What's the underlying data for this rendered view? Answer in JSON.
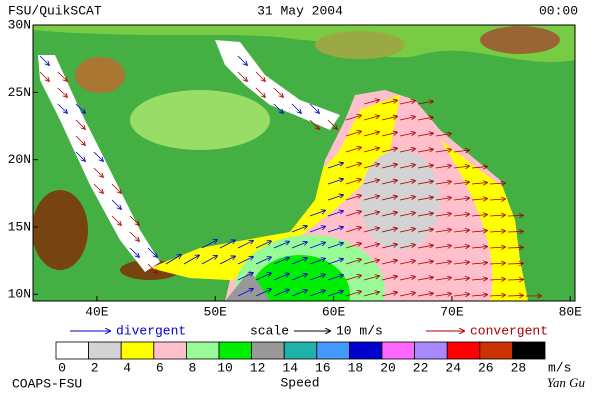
{
  "header": {
    "title": "FSU/QuikSCAT",
    "date": "31 May 2004",
    "time": "00:00"
  },
  "map": {
    "xlim": [
      34.6,
      80.4
    ],
    "ylim": [
      9.5,
      30
    ],
    "xticks": [
      {
        "value": 40,
        "label": "40E"
      },
      {
        "value": 50,
        "label": "50E"
      },
      {
        "value": 60,
        "label": "60E"
      },
      {
        "value": 70,
        "label": "70E"
      },
      {
        "value": 80,
        "label": "80E"
      }
    ],
    "yticks": [
      {
        "value": 10,
        "label": "10N"
      },
      {
        "value": 15,
        "label": "15N"
      },
      {
        "value": 20,
        "label": "20N"
      },
      {
        "value": 25,
        "label": "25N"
      },
      {
        "value": 30,
        "label": "30N"
      }
    ]
  },
  "legend": {
    "divergent": "divergent",
    "scale": "scale",
    "scale_value": "10 m/s",
    "convergent": "convergent"
  },
  "colorbar": {
    "ticks": [
      0,
      2,
      4,
      6,
      8,
      10,
      12,
      14,
      16,
      18,
      20,
      22,
      24,
      26,
      28
    ],
    "unit": "m/s",
    "label": "Speed",
    "colors": [
      "#ffffff",
      "#d3d3d3",
      "#ffff00",
      "#ffc0cb",
      "#98fb98",
      "#00ee00",
      "#999999",
      "#20b2aa",
      "#4499ff",
      "#0000cc",
      "#ff66ff",
      "#aa88ff",
      "#ff0000",
      "#cc3300",
      "#000000"
    ]
  },
  "footer": {
    "left": "COAPS-FSU",
    "right": "Yan Gu"
  }
}
